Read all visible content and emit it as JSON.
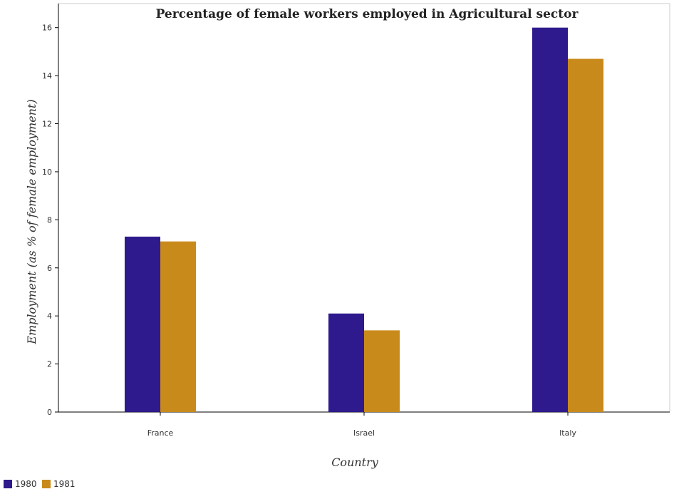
{
  "chart_data": {
    "type": "bar",
    "title": "Percentage of female workers employed in Agricultural sector",
    "xlabel": "Country",
    "ylabel": "Employment (as % of female employment)",
    "categories": [
      "France",
      "Israel",
      "Italy"
    ],
    "series": [
      {
        "name": "1980",
        "values": [
          7.3,
          4.1,
          16.0
        ],
        "color": "#2e1a8c"
      },
      {
        "name": "1981",
        "values": [
          7.1,
          3.4,
          14.7
        ],
        "color": "#c98a1c"
      }
    ],
    "ylim": [
      0,
      17
    ],
    "yticks": [
      "0",
      "2",
      "4",
      "6",
      "8",
      "10",
      "12",
      "14",
      "16"
    ],
    "grid": false,
    "legend_position": "bottom-left"
  }
}
